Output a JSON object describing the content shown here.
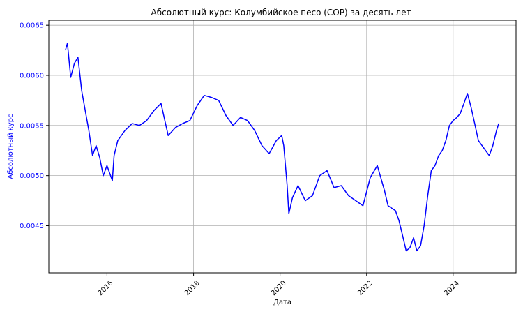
{
  "colors": {
    "line": "#0000ff",
    "y_axis_text": "#0000ff",
    "x_axis_text": "#000000",
    "grid": "#b0b0b0",
    "frame": "#000000"
  },
  "chart_data": {
    "type": "line",
    "title": "Абсолютный курс: Колумбийское песо (COP) за десять лет",
    "xlabel": "Дата",
    "ylabel": "Абсолютный курс",
    "x_ticks": [
      "2016",
      "2018",
      "2020",
      "2022",
      "2024"
    ],
    "y_ticks": [
      "0.0045",
      "0.0050",
      "0.0055",
      "0.0060",
      "0.0065"
    ],
    "xlim": [
      "2014-08-28",
      "2025-06-15"
    ],
    "ylim": [
      0.00403,
      0.00655
    ],
    "grid": true,
    "series": [
      {
        "name": "",
        "x": [
          "2015-01-15",
          "2015-02-01",
          "2015-03-01",
          "2015-04-01",
          "2015-05-01",
          "2015-06-01",
          "2015-07-01",
          "2015-08-01",
          "2015-09-01",
          "2015-10-01",
          "2015-11-01",
          "2015-12-01",
          "2016-01-01",
          "2016-02-15",
          "2016-03-01",
          "2016-04-01",
          "2016-06-01",
          "2016-08-01",
          "2016-10-01",
          "2016-12-01",
          "2017-02-01",
          "2017-04-01",
          "2017-06-01",
          "2017-08-01",
          "2017-10-01",
          "2017-12-01",
          "2018-02-01",
          "2018-04-01",
          "2018-06-01",
          "2018-08-01",
          "2018-10-01",
          "2018-12-01",
          "2019-02-01",
          "2019-04-01",
          "2019-06-01",
          "2019-08-01",
          "2019-10-01",
          "2019-12-01",
          "2020-01-15",
          "2020-02-01",
          "2020-03-01",
          "2020-03-15",
          "2020-04-15",
          "2020-06-01",
          "2020-08-01",
          "2020-10-01",
          "2020-12-01",
          "2021-02-01",
          "2021-04-01",
          "2021-06-01",
          "2021-08-01",
          "2021-10-01",
          "2021-12-01",
          "2022-02-01",
          "2022-04-01",
          "2022-06-01",
          "2022-07-01",
          "2022-09-01",
          "2022-10-01",
          "2022-11-01",
          "2022-12-01",
          "2023-01-01",
          "2023-02-01",
          "2023-03-01",
          "2023-04-01",
          "2023-05-01",
          "2023-06-01",
          "2023-07-01",
          "2023-08-01",
          "2023-09-01",
          "2023-10-01",
          "2023-11-01",
          "2023-12-01",
          "2024-01-01",
          "2024-02-01",
          "2024-03-01",
          "2024-04-01",
          "2024-05-01",
          "2024-06-01",
          "2024-07-01",
          "2024-08-01",
          "2024-09-01",
          "2024-10-01",
          "2024-11-01",
          "2024-12-01",
          "2025-01-01",
          "2025-01-20"
        ],
        "y": [
          0.00625,
          0.00632,
          0.00598,
          0.00612,
          0.00618,
          0.00585,
          0.00565,
          0.00545,
          0.0052,
          0.0053,
          0.00518,
          0.005,
          0.0051,
          0.00495,
          0.0052,
          0.00535,
          0.00545,
          0.00552,
          0.0055,
          0.00555,
          0.00565,
          0.00572,
          0.0054,
          0.00548,
          0.00552,
          0.00555,
          0.0057,
          0.0058,
          0.00578,
          0.00575,
          0.0056,
          0.0055,
          0.00558,
          0.00555,
          0.00545,
          0.0053,
          0.00522,
          0.00535,
          0.0054,
          0.0053,
          0.0049,
          0.00462,
          0.00478,
          0.0049,
          0.00475,
          0.0048,
          0.005,
          0.00505,
          0.00488,
          0.0049,
          0.0048,
          0.00475,
          0.0047,
          0.00498,
          0.0051,
          0.00485,
          0.0047,
          0.00465,
          0.00455,
          0.0044,
          0.00425,
          0.00428,
          0.00438,
          0.00425,
          0.0043,
          0.0045,
          0.0048,
          0.00505,
          0.0051,
          0.0052,
          0.00525,
          0.00535,
          0.0055,
          0.00555,
          0.00558,
          0.00562,
          0.00572,
          0.00582,
          0.00568,
          0.00552,
          0.00535,
          0.0053,
          0.00525,
          0.0052,
          0.0053,
          0.00545,
          0.00552
        ]
      }
    ]
  }
}
